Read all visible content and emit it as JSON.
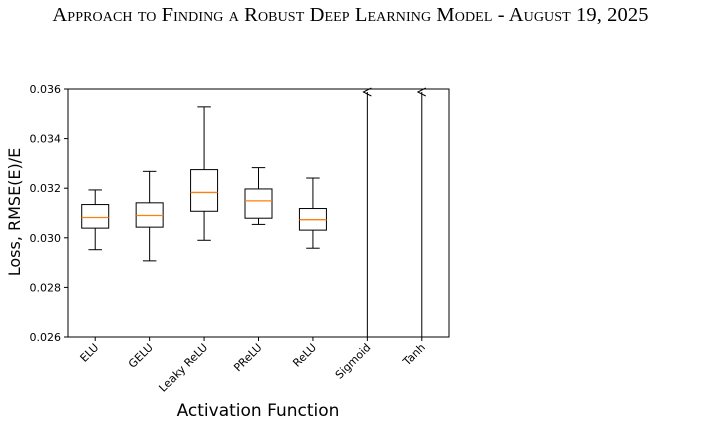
{
  "header": {
    "running_title": "Approach to Finding a Robust Deep Learning Model - August 19, 2025"
  },
  "chart_data": {
    "type": "box",
    "xlabel": "Activation Function",
    "ylabel": "Loss, RMSE(E)/E",
    "ylim": [
      0.026,
      0.036
    ],
    "yticks": [
      "0.026",
      "0.028",
      "0.030",
      "0.032",
      "0.034",
      "0.036"
    ],
    "grid": false,
    "categories": [
      "ELU",
      "GELU",
      "Leaky ReLU",
      "PReLU",
      "ReLU",
      "Sigmoid",
      "Tanh"
    ],
    "boxes": [
      {
        "category": "ELU",
        "whisker_low": 0.02952,
        "q1": 0.03039,
        "median": 0.03082,
        "q3": 0.03134,
        "whisker_high": 0.03193
      },
      {
        "category": "GELU",
        "whisker_low": 0.02907,
        "q1": 0.03043,
        "median": 0.0309,
        "q3": 0.03141,
        "whisker_high": 0.03268
      },
      {
        "category": "Leaky ReLU",
        "whisker_low": 0.0299,
        "q1": 0.03107,
        "median": 0.03183,
        "q3": 0.03275,
        "whisker_high": 0.03528
      },
      {
        "category": "PReLU",
        "whisker_low": 0.03054,
        "q1": 0.03079,
        "median": 0.03149,
        "q3": 0.03197,
        "whisker_high": 0.03283
      },
      {
        "category": "ReLU",
        "whisker_low": 0.02958,
        "q1": 0.03031,
        "median": 0.03073,
        "q3": 0.03118,
        "whisker_high": 0.03241
      },
      {
        "category": "Sigmoid",
        "out_of_range": "above"
      },
      {
        "category": "Tanh",
        "out_of_range": "above"
      }
    ],
    "colors": {
      "box": "#000000",
      "median": "#ff7f0e"
    }
  }
}
